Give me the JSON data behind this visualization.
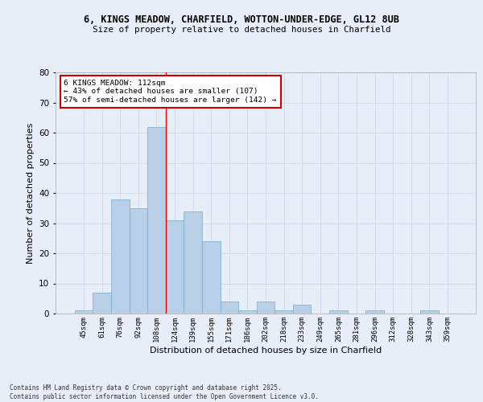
{
  "title1": "6, KINGS MEADOW, CHARFIELD, WOTTON-UNDER-EDGE, GL12 8UB",
  "title2": "Size of property relative to detached houses in Charfield",
  "xlabel": "Distribution of detached houses by size in Charfield",
  "ylabel": "Number of detached properties",
  "categories": [
    "45sqm",
    "61sqm",
    "76sqm",
    "92sqm",
    "108sqm",
    "124sqm",
    "139sqm",
    "155sqm",
    "171sqm",
    "186sqm",
    "202sqm",
    "218sqm",
    "233sqm",
    "249sqm",
    "265sqm",
    "281sqm",
    "296sqm",
    "312sqm",
    "328sqm",
    "343sqm",
    "359sqm"
  ],
  "values": [
    1,
    7,
    38,
    35,
    62,
    31,
    34,
    24,
    4,
    1,
    4,
    1,
    3,
    0,
    1,
    0,
    1,
    0,
    0,
    1,
    0
  ],
  "bar_color": "#b8cfe8",
  "bar_edge_color": "#7aaad0",
  "grid_color": "#d0d8e8",
  "background_color": "#e8eef8",
  "ylim": [
    0,
    80
  ],
  "yticks": [
    0,
    10,
    20,
    30,
    40,
    50,
    60,
    70,
    80
  ],
  "property_line_x": 4.5,
  "annotation_text": "6 KINGS MEADOW: 112sqm\n← 43% of detached houses are smaller (107)\n57% of semi-detached houses are larger (142) →",
  "annotation_box_color": "#ffffff",
  "annotation_box_edge": "#cc0000",
  "footer": "Contains HM Land Registry data © Crown copyright and database right 2025.\nContains public sector information licensed under the Open Government Licence v3.0."
}
